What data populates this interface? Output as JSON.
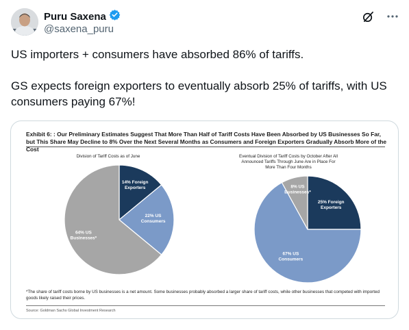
{
  "author": {
    "name": "Puru Saxena",
    "handle": "@saxena_puru",
    "verified": true,
    "accent_color": "#1d9bf0"
  },
  "icons": {
    "grok": "grok-slash-circle-icon",
    "more": "more-dots-icon"
  },
  "tweet": {
    "line1": "US importers + consumers have absorbed 86% of tariffs.",
    "line2": "GS expects foreign exporters to eventually absorb 25% of tariffs, with US consumers paying 67%!"
  },
  "exhibit": {
    "title": "Exhibit 6: : Our Preliminary Estimates Suggest That More Than Half of Tariff Costs Have Been Absorbed by US Businesses So Far, but This Share May Decline to 8% Over the Next Several Months as Consumers and Foreign Exporters Gradually Absorb More of the Cost",
    "footnote": "*The share of tariff costs borne by US businesses is a net amount. Some businesses probably absorbed a larger share of tariff costs, while other businesses that competed with imported goods likely raised their prices.",
    "source": "Source: Goldman Sachs Global Investment Research"
  },
  "chart_data": [
    {
      "type": "pie",
      "title": "Division of Tariff Costs as of June",
      "slices": [
        {
          "label": "14% Foreign Exporters",
          "value": 14,
          "color": "#1b3a5c"
        },
        {
          "label": "22% US Consumers",
          "value": 22,
          "color": "#7b9ac8"
        },
        {
          "label": "64% US Businesses*",
          "value": 64,
          "color": "#a6a6a6"
        }
      ]
    },
    {
      "type": "pie",
      "title": "Eventual Division of Tariff Costs by October After All Announced Tariffs Through June Are in Place For More Than Four Months",
      "slices": [
        {
          "label": "25% Foreign Exporters",
          "value": 25,
          "color": "#1b3a5c"
        },
        {
          "label": "67% US Consumers",
          "value": 67,
          "color": "#7b9ac8"
        },
        {
          "label": "8% US Businesses*",
          "value": 8,
          "color": "#a6a6a6"
        }
      ]
    }
  ]
}
